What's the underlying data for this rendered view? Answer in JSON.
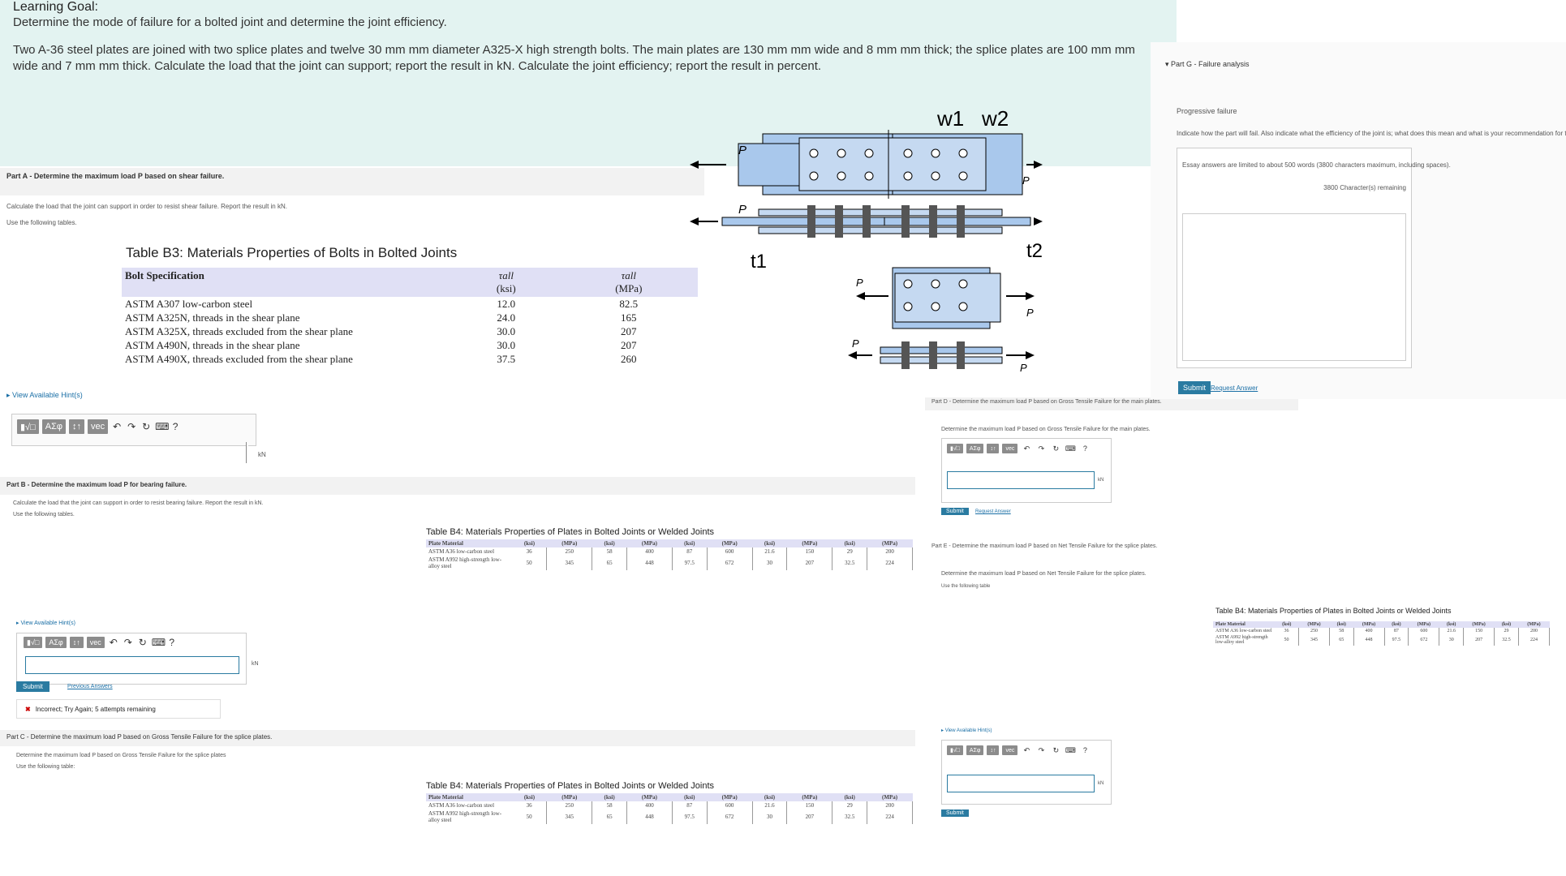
{
  "learning_goal": {
    "title": "Learning Goal:",
    "text": "Determine the mode of failure for a bolted joint and determine the joint efficiency.",
    "problem": "Two A-36 steel plates are joined with two splice plates and twelve 30 mm mm diameter A325-X high strength bolts. The main plates are 130 mm mm wide and 8 mm mm thick; the splice plates are 100 mm mm wide and 7 mm mm thick. Calculate the load that the joint can support; report the result in kN. Calculate the joint efficiency; report the result in percent."
  },
  "part_a": {
    "header": "Part A - Determine the maximum load P based on shear failure.",
    "instr1": "Calculate the load that the joint can support in order to resist shear failure. Report the result in kN.",
    "instr2": "Use the following tables.",
    "view_hints": "View Available Hint(s)",
    "unit": "kN"
  },
  "table_b3": {
    "caption": "Table B3: Materials Properties of Bolts in Bolted Joints",
    "col_spec": "Bolt Specification",
    "col_ksi_sym": "τall",
    "col_ksi": "(ksi)",
    "col_mpa_sym": "τall",
    "col_mpa": "(MPa)",
    "rows": [
      {
        "spec": "ASTM A307 low-carbon steel",
        "ksi": "12.0",
        "mpa": "82.5"
      },
      {
        "spec": "ASTM A325N, threads in the shear plane",
        "ksi": "24.0",
        "mpa": "165"
      },
      {
        "spec": "ASTM A325X, threads excluded from the shear plane",
        "ksi": "30.0",
        "mpa": "207"
      },
      {
        "spec": "ASTM A490N, threads in the shear plane",
        "ksi": "30.0",
        "mpa": "207"
      },
      {
        "spec": "ASTM A490X, threads excluded from the shear plane",
        "ksi": "37.5",
        "mpa": "260"
      }
    ]
  },
  "toolbar": {
    "templates": "▮√□",
    "greek": "ΑΣφ",
    "arrows": "↕↑",
    "vec": "vec",
    "help": "?"
  },
  "diagram": {
    "w1": "w1",
    "w2": "w2",
    "t1": "t1",
    "t2": "t2",
    "p": "P"
  },
  "part_b": {
    "header": "Part B - Determine the maximum load P for bearing failure.",
    "instr1": "Calculate the load that the joint can support in order to resist bearing failure. Report the result in kN.",
    "instr2": "Use the following tables.",
    "view_hints": "View Available Hint(s)",
    "unit": "kN",
    "submit": "Submit",
    "previous": "Previous Answers",
    "feedback": "Incorrect; Try Again; 5 attempts remaining"
  },
  "table_b4": {
    "caption": "Table B4: Materials Properties of Plates in Bolted Joints or Welded Joints",
    "col_material": "Plate Material",
    "units": [
      "(ksi)",
      "(MPa)",
      "(ksi)",
      "(MPa)",
      "(ksi)",
      "(MPa)",
      "(ksi)",
      "(MPa)",
      "(ksi)",
      "(MPa)"
    ],
    "rows": [
      {
        "material": "ASTM A36 low-carbon steel",
        "vals": [
          "36",
          "250",
          "58",
          "400",
          "87",
          "600",
          "21.6",
          "150",
          "29",
          "200"
        ]
      },
      {
        "material": "ASTM A992 high-strength low-alloy steel",
        "vals": [
          "50",
          "345",
          "65",
          "448",
          "97.5",
          "672",
          "30",
          "207",
          "32.5",
          "224"
        ]
      }
    ]
  },
  "part_c": {
    "header": "Part C - Determine the maximum load P based on Gross Tensile Failure for the splice plates.",
    "instr1": "Determine the maximum load P based on Gross Tensile Failure for the splice plates",
    "instr2": "Use the following table:"
  },
  "right_column": {
    "part_d": "Part D - Determine the maximum load P based on Gross Tensile Failure for the main plates.",
    "part_d_instr": "Determine the maximum load P based on Gross Tensile Failure for the main plates.",
    "part_e": "Part E - Determine the maximum load P based on Net Tensile Failure for the splice plates.",
    "part_e_instr": "Determine the maximum load P based on Net Tensile Failure for the splice plates.",
    "part_e_instr2": "Use the following table",
    "view_hints": "View Available Hint(s)",
    "unit": "kN",
    "submit": "Submit",
    "request": "Request Answer"
  },
  "part_g": {
    "header": "Part G - Failure analysis",
    "sub": "Progressive failure",
    "instr": "Indicate how the part will fail. Also indicate what the efficiency of the joint is; what does this mean and what is your recommendation for the joint design?",
    "essay_note": "Essay answers are limited to about 500 words (3800 characters maximum, including spaces).",
    "remaining": "3800 Character(s) remaining",
    "submit": "Submit",
    "request": "Request Answer"
  },
  "colors": {
    "goal_bg": "#e3f3f1",
    "plate_fill": "#a9c8ec",
    "submit": "#2a7ba1",
    "link": "#1a6fa6",
    "table_header": "#e0e0f5"
  }
}
